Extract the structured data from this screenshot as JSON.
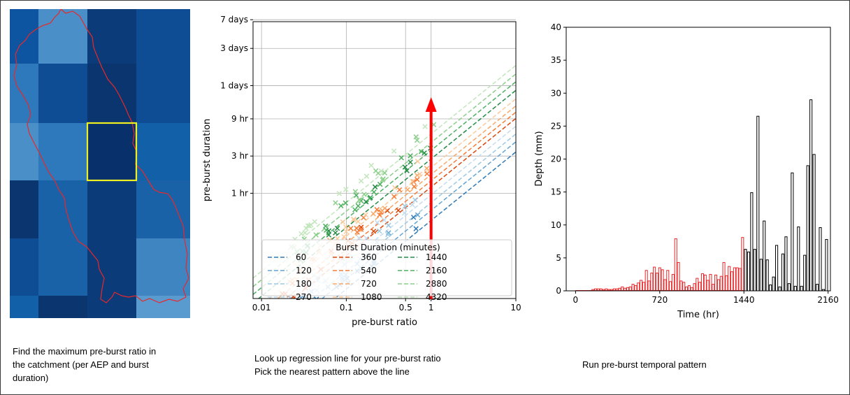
{
  "captions": {
    "step1": [
      "Find the maximum pre-burst ratio in",
      "the catchment (per AEP and burst",
      "duration)"
    ],
    "step2": [
      "Look up regression line for your pre-burst ratio",
      "Pick the nearest pattern above the line"
    ],
    "step3": [
      "Run pre-burst temporal pattern"
    ]
  },
  "colors": {
    "catchment_outline": "#e8282a",
    "highlight_box": "#f0f020",
    "arrow": "#ff0000",
    "prepattern_bars": "#e8282a",
    "burst_bars": "#000000"
  },
  "map": {
    "type": "heatmap",
    "grid": [
      [
        "#0d55a0",
        "#4a8fc7",
        "#0c3b7a",
        "#0e4d94"
      ],
      [
        "#2e79bb",
        "#0e4d94",
        "#0a356f",
        "#0e4d94"
      ],
      [
        "#4a8fc7",
        "#2e79bb",
        "#08306b",
        "#1260a8"
      ],
      [
        "#0a356f",
        "#1a62a8",
        "#0c3b7a",
        "#1a62a8"
      ],
      [
        "#0e4d94",
        "#1a62a8",
        "#0c3b7a",
        "#3f85c2"
      ],
      [
        "#1260a8",
        "#0a356f",
        "#0c3b7a",
        "#5a9bcf"
      ]
    ]
  },
  "chart_data": [
    {
      "type": "scatter",
      "xlabel": "pre-burst ratio",
      "ylabel": "pre-burst duration",
      "xscale": "log",
      "yscale": "log",
      "xticks": [
        "0.01",
        "0.1",
        "0.5",
        "1",
        "10"
      ],
      "yticks": [
        "1 hr",
        "3 hr",
        "9 hr",
        "1 days",
        "3 days",
        "7 days"
      ],
      "grid": true,
      "legend_title": "Burst Duration (minutes)",
      "legend_position": "lower-right",
      "legend": [
        {
          "label": "60",
          "color": "#2f7ab6"
        },
        {
          "label": "120",
          "color": "#62a4d3"
        },
        {
          "label": "180",
          "color": "#9cc9e3"
        },
        {
          "label": "270",
          "color": "#c3dcee"
        },
        {
          "label": "360",
          "color": "#d9460b"
        },
        {
          "label": "540",
          "color": "#f47d3a"
        },
        {
          "label": "720",
          "color": "#f8a868"
        },
        {
          "label": "1080",
          "color": "#fbcb9b"
        },
        {
          "label": "1440",
          "color": "#238b45"
        },
        {
          "label": "2160",
          "color": "#4db060"
        },
        {
          "label": "2880",
          "color": "#8ccf8a"
        },
        {
          "label": "4320",
          "color": "#c2e6bb"
        }
      ],
      "annotation": {
        "type": "arrow",
        "x": 1
      }
    },
    {
      "type": "bar",
      "xlabel": "Time (hr)",
      "ylabel": "Depth (mm)",
      "xticks": [
        "0",
        "720",
        "1440",
        "2160"
      ],
      "yticks": [
        "0",
        "5",
        "10",
        "15",
        "20",
        "25",
        "30",
        "35",
        "40"
      ],
      "xlim": [
        0,
        2160
      ],
      "ylim": [
        0,
        40
      ],
      "pre_burst_bars": [
        0,
        0,
        0,
        0,
        0,
        0,
        0.2,
        0.3,
        0.3,
        0.3,
        0.2,
        0.3,
        0.2,
        0.2,
        0.3,
        0.3,
        0.4,
        0.6,
        0.4,
        0.5,
        0.6,
        1.0,
        0.8,
        1.2,
        1.6,
        1.3,
        3.1,
        1.5,
        2.7,
        3.6,
        2.7,
        3.5,
        3.2,
        1.7,
        3.1,
        1.4,
        2.5,
        7.9,
        4.3,
        1.5,
        1.3,
        0.6,
        0.8,
        0.5,
        1.1,
        1.9,
        1.3,
        2.6,
        2.4,
        1.6,
        2.5,
        1.0,
        2.4,
        1.7,
        2.2,
        4.3,
        2.3,
        3.7,
        2.9,
        3.5,
        3.5,
        3.4,
        8.1
      ],
      "burst_bars": [
        6.3,
        5.9,
        14.9,
        6.3,
        26.5,
        4.8,
        10.6,
        4.7,
        0.9,
        2.1,
        6.9,
        0.6,
        5.6,
        8.2,
        1.1,
        17.9,
        0.7,
        9.7,
        0.7,
        5.4,
        19.0,
        29.0,
        20.7,
        1.0,
        9.6,
        0.2,
        7.8
      ]
    }
  ]
}
